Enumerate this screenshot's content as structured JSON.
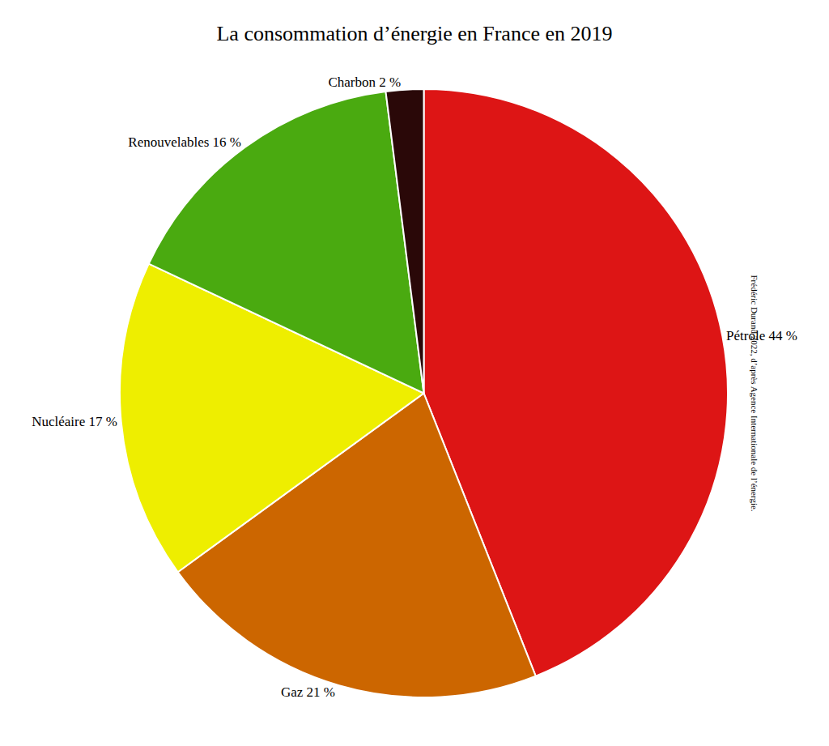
{
  "chart_data": {
    "type": "pie",
    "title": "La consommation d’énergie en France en 2019",
    "categories": [
      "Pétrole 44 %",
      "Gaz 21 %",
      "Nucléaire 17 %",
      "Renouvelables 16 %",
      "Charbon 2 %"
    ],
    "values": [
      44,
      21,
      17,
      16,
      2
    ],
    "colors": [
      "#dd1515",
      "#cc6600",
      "#eeee00",
      "#4aaa10",
      "#2a0808"
    ],
    "annotations": [
      "Frédéric Durand 2022, d’après Agence Internationale de l’énergie."
    ]
  }
}
